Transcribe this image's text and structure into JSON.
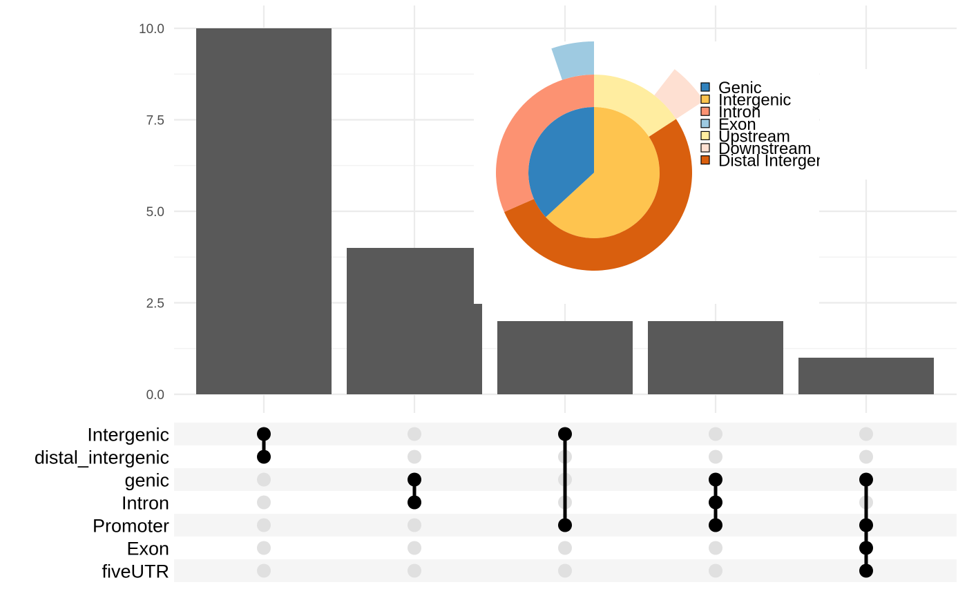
{
  "chart_data": [
    {
      "type": "bar",
      "subtype": "upset-intersection-sizes",
      "title": "",
      "xlabel": "",
      "ylabel": "",
      "ylim": [
        0,
        10.5
      ],
      "yticks": [
        0,
        2.5,
        5,
        7.5,
        10
      ],
      "ytick_labels": [
        "0.0",
        "2.5",
        "5.0",
        "7.5",
        "10.0"
      ],
      "grid": true,
      "bar_color": "#595959",
      "values": [
        10,
        4,
        2,
        2,
        1
      ]
    },
    {
      "type": "table",
      "subtype": "upset-set-membership-matrix",
      "sets": [
        "Intergenic",
        "distal_intergenic",
        "genic",
        "Intron",
        "Promoter",
        "Exon",
        "fiveUTR"
      ],
      "intersections": [
        [
          "Intergenic",
          "distal_intergenic"
        ],
        [
          "genic",
          "Intron"
        ],
        [
          "Intergenic",
          "Promoter"
        ],
        [
          "genic",
          "Intron",
          "Promoter"
        ],
        [
          "genic",
          "Promoter",
          "Exon",
          "fiveUTR"
        ]
      ],
      "active_color": "#000000",
      "inactive_color": "#e0e0e0",
      "stripe_color": "#f5f5f5"
    },
    {
      "type": "pie",
      "subtype": "vennpie-inset",
      "legend_placement": "right",
      "legend": [
        {
          "label": "Genic",
          "color": "#3182bd"
        },
        {
          "label": "Intergenic",
          "color": "#fec44f"
        },
        {
          "label": "Intron",
          "color": "#fc9272"
        },
        {
          "label": "Exon",
          "color": "#9ecae1"
        },
        {
          "label": "Upstream",
          "color": "#ffeda0"
        },
        {
          "label": "Downstream",
          "color": "#fee0d2"
        },
        {
          "label": "Distal Intergenic",
          "color": "#d95f0e"
        }
      ],
      "rings": [
        {
          "level": "inner",
          "slices": [
            {
              "label": "Genic",
              "value": 7,
              "color": "#3182bd"
            },
            {
              "label": "Intergenic",
              "value": 12,
              "color": "#fec44f"
            }
          ]
        },
        {
          "level": "middle",
          "slices": [
            {
              "label": "Upstream",
              "value": 3,
              "color": "#ffeda0"
            },
            {
              "label": "Distal Intergenic",
              "value": 10,
              "color": "#d95f0e"
            },
            {
              "label": "Intron",
              "value": 6,
              "color": "#fc9272"
            }
          ]
        },
        {
          "level": "outer",
          "slices": [
            {
              "label": "Downstream",
              "value": 1,
              "color": "#fee0d2"
            },
            {
              "label": "Exon",
              "value": 1,
              "color": "#9ecae1"
            }
          ]
        }
      ]
    }
  ]
}
